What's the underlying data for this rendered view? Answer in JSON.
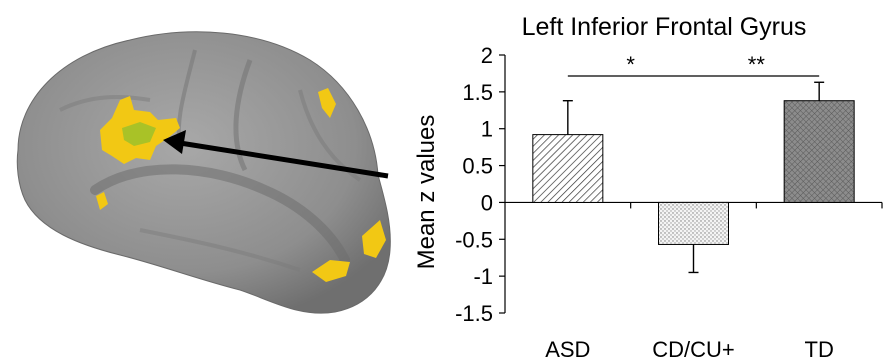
{
  "colors": {
    "brain_base": "#8f8f8f",
    "activation": "#f2c814",
    "activation_core": "#9cc12a",
    "bar_asd": "#ffffff",
    "bar_cd": "#f3f3f3",
    "bar_td": "#8a8a8a",
    "axis": "#000000"
  },
  "chart_data": {
    "type": "bar",
    "title": "Left Inferior Frontal Gyrus",
    "ylabel": "Mean z values",
    "xlabel": "",
    "categories": [
      "ASD",
      "CD/CU+",
      "TD"
    ],
    "values": [
      0.92,
      -0.57,
      1.38
    ],
    "error": [
      0.46,
      0.38,
      0.25
    ],
    "ylim": [
      -1.5,
      2
    ],
    "yticks": [
      2,
      1.5,
      1,
      0.5,
      0,
      -0.5,
      -1,
      -1.5
    ],
    "ytick_labels": [
      "2",
      "1.5",
      "1",
      "0.5",
      "0",
      "-0.5",
      "-1",
      "-1.5"
    ],
    "grid": false,
    "legend": "none",
    "patterns": [
      "diagonal-hatch",
      "dots",
      "cross-hatch"
    ],
    "significance": [
      {
        "from": "ASD",
        "to": "CD/CU+",
        "label": "*"
      },
      {
        "from": "CD/CU+",
        "to": "TD",
        "label": "**"
      }
    ]
  }
}
